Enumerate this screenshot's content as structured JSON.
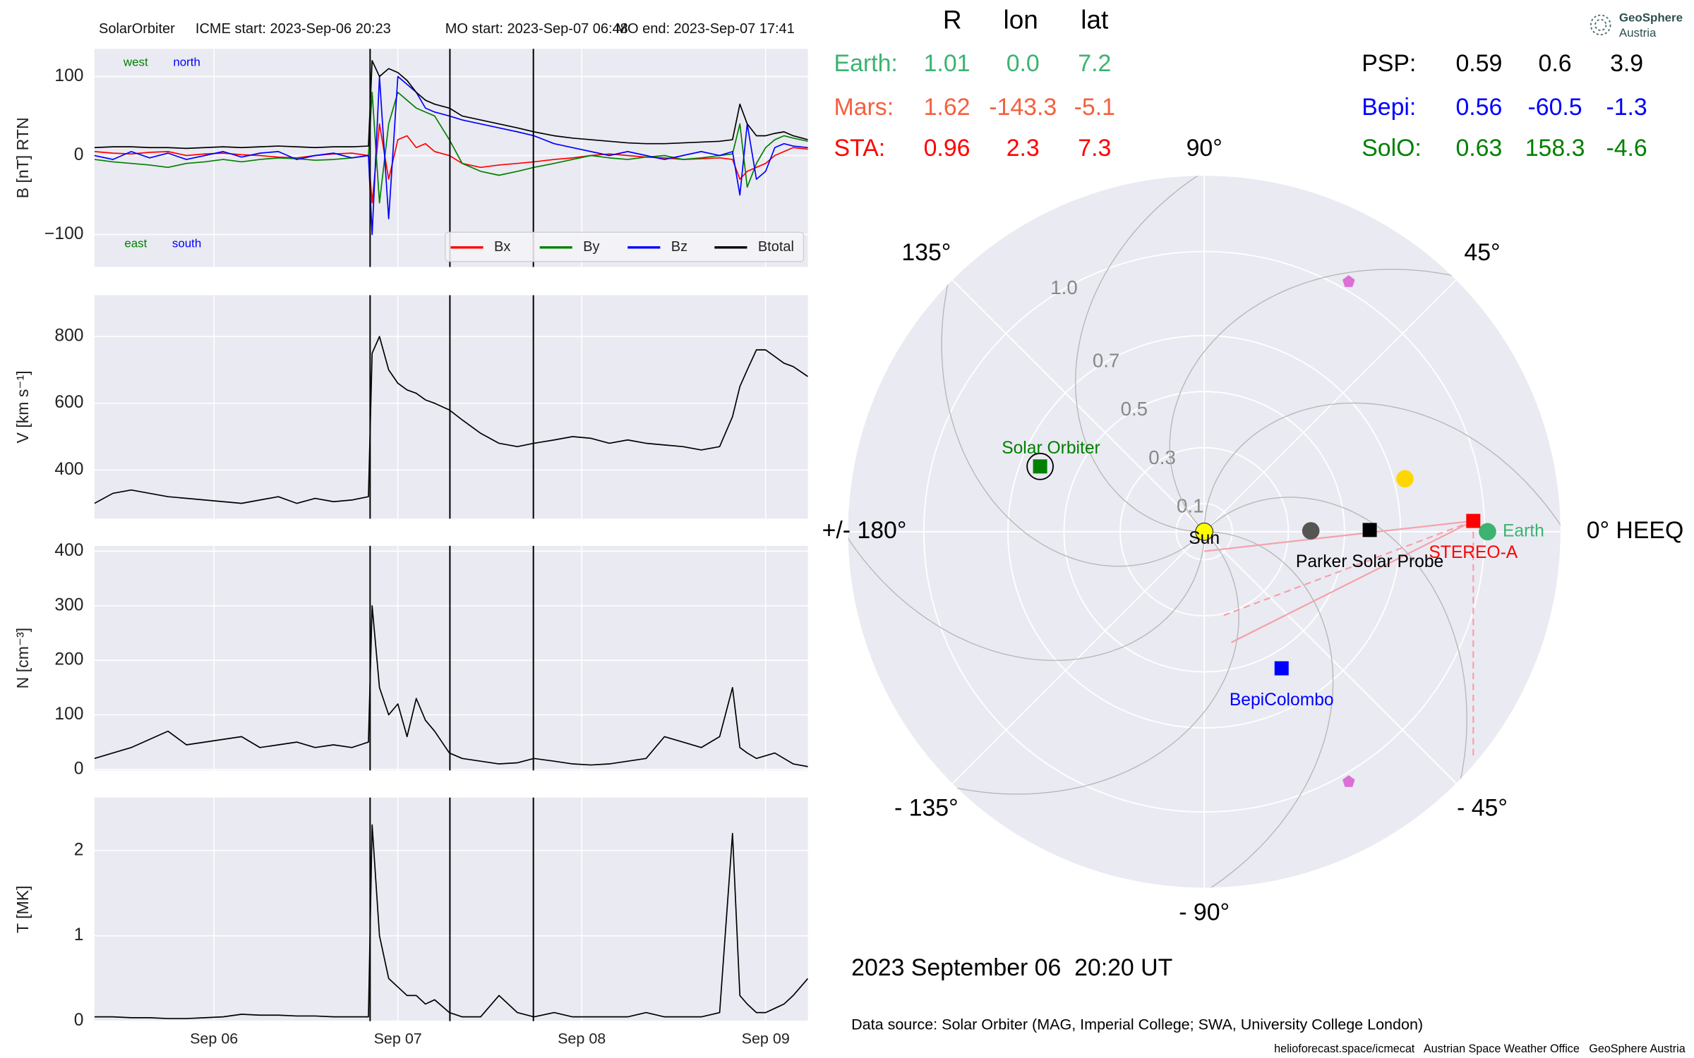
{
  "chart_data": [
    {
      "type": "line",
      "title": "SolarOrbiter",
      "annotations": [
        "ICME start: 2023-Sep-06 20:23",
        "MO start: 2023-Sep-07 06:48",
        "MO end: 2023-Sep-07 17:41"
      ],
      "ylabel": "B [nT] RTN",
      "x": [
        5.35,
        5.45,
        5.55,
        5.65,
        5.75,
        5.85,
        5.95,
        6.05,
        6.15,
        6.25,
        6.35,
        6.45,
        6.55,
        6.65,
        6.75,
        6.84,
        6.86,
        6.9,
        6.95,
        7.0,
        7.05,
        7.1,
        7.15,
        7.2,
        7.28,
        7.35,
        7.45,
        7.55,
        7.65,
        7.74,
        7.85,
        7.95,
        8.05,
        8.15,
        8.25,
        8.35,
        8.45,
        8.55,
        8.65,
        8.75,
        8.82,
        8.86,
        8.9,
        8.95,
        9.0,
        9.05,
        9.1,
        9.15,
        9.23
      ],
      "series": [
        {
          "name": "Bx",
          "color": "#ff0000",
          "values": [
            5,
            3,
            2,
            4,
            5,
            0,
            2,
            3,
            1,
            0,
            -2,
            -3,
            0,
            2,
            3,
            0,
            -60,
            40,
            -30,
            20,
            25,
            10,
            15,
            5,
            0,
            -10,
            -15,
            -12,
            -10,
            -8,
            -5,
            -3,
            0,
            2,
            0,
            -2,
            -3,
            -5,
            -4,
            -3,
            -5,
            -30,
            -20,
            -15,
            -10,
            0,
            5,
            10,
            8
          ]
        },
        {
          "name": "By",
          "color": "#008000",
          "values": [
            -5,
            -8,
            -10,
            -12,
            -15,
            -10,
            -8,
            -5,
            -8,
            -5,
            -3,
            -4,
            -6,
            -5,
            -3,
            0,
            80,
            -60,
            40,
            80,
            70,
            60,
            55,
            50,
            20,
            -10,
            -20,
            -25,
            -20,
            -15,
            -10,
            -5,
            0,
            -3,
            -5,
            -2,
            0,
            -5,
            -3,
            0,
            2,
            40,
            -40,
            -10,
            10,
            20,
            25,
            22,
            18
          ]
        },
        {
          "name": "Bz",
          "color": "#0000ff",
          "values": [
            0,
            -5,
            5,
            -3,
            3,
            -5,
            0,
            5,
            -2,
            3,
            5,
            -5,
            0,
            3,
            -3,
            0,
            -100,
            100,
            -80,
            100,
            90,
            80,
            60,
            55,
            50,
            45,
            40,
            35,
            30,
            25,
            15,
            10,
            5,
            0,
            5,
            0,
            -5,
            0,
            5,
            0,
            5,
            -50,
            40,
            -30,
            -20,
            10,
            15,
            12,
            10
          ]
        },
        {
          "name": "Btotal",
          "color": "#000000",
          "values": [
            10,
            11,
            11,
            10,
            10,
            9,
            10,
            11,
            10,
            11,
            12,
            11,
            10,
            11,
            11,
            12,
            120,
            100,
            110,
            105,
            95,
            80,
            70,
            65,
            60,
            50,
            45,
            40,
            35,
            30,
            25,
            22,
            20,
            18,
            16,
            15,
            15,
            16,
            17,
            18,
            20,
            65,
            40,
            25,
            25,
            28,
            30,
            25,
            20
          ]
        }
      ],
      "corner_labels": [
        {
          "text": "west",
          "color": "#008000"
        },
        {
          "text": "north",
          "color": "#0000ff"
        },
        {
          "text": "east",
          "color": "#008000"
        },
        {
          "text": "south",
          "color": "#0000ff"
        }
      ],
      "event_lines": [
        6.849,
        7.283,
        7.737
      ],
      "xlim": [
        5.35,
        9.23
      ],
      "xticks": [
        6,
        7,
        8,
        9
      ],
      "ylim": [
        -141,
        135
      ],
      "yticks": [
        {
          "value": -100,
          "label": "−100"
        },
        0,
        100
      ],
      "grid": true,
      "legend": "lower right"
    },
    {
      "type": "line",
      "ylabel": "V [km s⁻¹]",
      "x": [
        5.35,
        5.45,
        5.55,
        5.65,
        5.75,
        5.85,
        5.95,
        6.05,
        6.15,
        6.25,
        6.35,
        6.45,
        6.55,
        6.65,
        6.75,
        6.84,
        6.86,
        6.9,
        6.95,
        7.0,
        7.05,
        7.1,
        7.15,
        7.2,
        7.28,
        7.35,
        7.45,
        7.55,
        7.65,
        7.74,
        7.85,
        7.95,
        8.05,
        8.15,
        8.25,
        8.35,
        8.45,
        8.55,
        8.65,
        8.75,
        8.82,
        8.86,
        8.9,
        8.95,
        9.0,
        9.05,
        9.1,
        9.15,
        9.23
      ],
      "values": [
        300,
        330,
        340,
        330,
        320,
        315,
        310,
        305,
        300,
        310,
        320,
        300,
        315,
        305,
        310,
        320,
        750,
        800,
        700,
        660,
        640,
        630,
        610,
        600,
        580,
        550,
        510,
        480,
        470,
        480,
        490,
        500,
        495,
        480,
        490,
        480,
        475,
        470,
        460,
        470,
        560,
        650,
        700,
        760,
        760,
        740,
        720,
        710,
        680
      ],
      "color": "#000000",
      "event_lines": [
        6.849,
        7.283,
        7.737
      ],
      "xlim": [
        5.35,
        9.23
      ],
      "xticks": [
        6,
        7,
        8,
        9
      ],
      "ylim": [
        254,
        924
      ],
      "yticks": [
        400,
        600,
        800
      ],
      "grid": true
    },
    {
      "type": "line",
      "ylabel": "N [cm⁻³]",
      "x": [
        5.35,
        5.45,
        5.55,
        5.65,
        5.75,
        5.85,
        5.95,
        6.05,
        6.15,
        6.25,
        6.35,
        6.45,
        6.55,
        6.65,
        6.75,
        6.84,
        6.86,
        6.9,
        6.95,
        7.0,
        7.05,
        7.1,
        7.15,
        7.2,
        7.28,
        7.35,
        7.45,
        7.55,
        7.65,
        7.74,
        7.85,
        7.95,
        8.05,
        8.15,
        8.25,
        8.35,
        8.45,
        8.55,
        8.65,
        8.75,
        8.82,
        8.86,
        8.9,
        8.95,
        9.0,
        9.05,
        9.1,
        9.15,
        9.23
      ],
      "values": [
        20,
        30,
        40,
        55,
        70,
        45,
        50,
        55,
        60,
        40,
        45,
        50,
        40,
        45,
        40,
        50,
        300,
        150,
        100,
        120,
        60,
        130,
        90,
        70,
        30,
        20,
        15,
        10,
        12,
        20,
        15,
        10,
        8,
        10,
        15,
        20,
        60,
        50,
        40,
        60,
        150,
        40,
        30,
        20,
        25,
        30,
        20,
        10,
        5
      ],
      "color": "#000000",
      "event_lines": [
        6.849,
        7.283,
        7.737
      ],
      "xlim": [
        5.35,
        9.23
      ],
      "xticks": [
        6,
        7,
        8,
        9
      ],
      "ylim": [
        -2,
        410
      ],
      "yticks": [
        0,
        100,
        200,
        300,
        400
      ],
      "grid": true
    },
    {
      "type": "line",
      "ylabel": "T [MK]",
      "x": [
        5.35,
        5.45,
        5.55,
        5.65,
        5.75,
        5.85,
        5.95,
        6.05,
        6.15,
        6.25,
        6.35,
        6.45,
        6.55,
        6.65,
        6.75,
        6.84,
        6.86,
        6.9,
        6.95,
        7.0,
        7.05,
        7.1,
        7.15,
        7.2,
        7.28,
        7.35,
        7.45,
        7.55,
        7.65,
        7.74,
        7.85,
        7.95,
        8.05,
        8.15,
        8.25,
        8.35,
        8.45,
        8.55,
        8.65,
        8.75,
        8.82,
        8.86,
        8.9,
        8.95,
        9.0,
        9.05,
        9.1,
        9.15,
        9.23
      ],
      "values": [
        0.05,
        0.05,
        0.04,
        0.04,
        0.03,
        0.03,
        0.04,
        0.05,
        0.08,
        0.07,
        0.07,
        0.06,
        0.06,
        0.05,
        0.05,
        0.05,
        2.3,
        1.0,
        0.5,
        0.4,
        0.3,
        0.3,
        0.2,
        0.25,
        0.1,
        0.05,
        0.05,
        0.3,
        0.1,
        0.05,
        0.1,
        0.05,
        0.05,
        0.05,
        0.05,
        0.1,
        0.05,
        0.05,
        0.05,
        0.1,
        2.2,
        0.3,
        0.2,
        0.1,
        0.1,
        0.15,
        0.2,
        0.3,
        0.5
      ],
      "color": "#000000",
      "event_lines": [
        6.849,
        7.283,
        7.737
      ],
      "xlim": [
        5.35,
        9.23
      ],
      "xticks": [
        {
          "value": 6,
          "label": "Sep 06"
        },
        {
          "value": 7,
          "label": "Sep 07"
        },
        {
          "value": 8,
          "label": "Sep 08"
        },
        {
          "value": 9,
          "label": "Sep 09"
        }
      ],
      "ylim": [
        0,
        2.62
      ],
      "yticks": [
        0,
        1,
        2
      ],
      "grid": true
    },
    {
      "type": "polar",
      "rlim": [
        0,
        1.27
      ],
      "rticks": [
        0.1,
        0.3,
        0.5,
        0.7,
        {
          "value": 1,
          "label": "1.0"
        }
      ],
      "thetaticks": [
        {
          "value": 0,
          "label": "0° HEEQ"
        },
        {
          "value": 45,
          "label": "45°"
        },
        {
          "value": 90,
          "label": "90°"
        },
        {
          "value": 135,
          "label": "135°"
        },
        {
          "value": 180,
          "label": "+/- 180°"
        },
        {
          "value": -135,
          "label": "- 135°"
        },
        {
          "value": -90,
          "label": "- 90°"
        },
        {
          "value": -45,
          "label": "- 45°"
        }
      ],
      "points": [
        {
          "name": "Sun",
          "r": 0,
          "lon": 0,
          "color": "#ffff00",
          "marker": "circle",
          "label_side": "center"
        },
        {
          "name": "Earth",
          "r": 1.01,
          "lon": 0,
          "color": "#3cb371",
          "marker": "circle",
          "label_side": "right"
        },
        {
          "name": "STEREO-A",
          "r": 0.96,
          "lon": 2.3,
          "color": "#ff0000",
          "marker": "square",
          "label_side": "below"
        },
        {
          "name": "Parker Solar Probe",
          "r": 0.59,
          "lon": 0.6,
          "color": "#000000",
          "marker": "square",
          "label_side": "below"
        },
        {
          "name": "BepiColombo",
          "r": 0.56,
          "lon": -60.5,
          "color": "#0000ff",
          "marker": "square",
          "label_side": "below"
        },
        {
          "name": "Solar Orbiter",
          "r": 0.63,
          "lon": 158.3,
          "color": "#008000",
          "marker": "square",
          "label_side": "above",
          "highlight": true
        },
        {
          "r": 0.38,
          "lon": 0.5,
          "color": "#555555",
          "marker": "circle"
        },
        {
          "r": 0.74,
          "lon": 14.8,
          "color": "#ffd700",
          "marker": "circle"
        },
        {
          "r": 1.03,
          "lon": 60,
          "color": "#da70d6",
          "marker": "pentagon"
        },
        {
          "r": 1.03,
          "lon": -60,
          "color": "#da70d6",
          "marker": "pentagon"
        }
      ]
    }
  ],
  "positions": {
    "headers": [
      "R",
      "lon",
      "lat"
    ],
    "rows": [
      {
        "name": "Earth:",
        "color": "#3cb371",
        "values": [
          "1.01",
          "0.0",
          "7.2"
        ]
      },
      {
        "name": "Mars:",
        "color": "#f4603f",
        "values": [
          "1.62",
          "-143.3",
          "-5.1"
        ]
      },
      {
        "name": "STA:",
        "color": "#ff0000",
        "values": [
          "0.96",
          "2.3",
          "7.3"
        ]
      },
      {
        "name": "PSP:",
        "color": "#000000",
        "values": [
          "0.59",
          "0.6",
          "3.9"
        ]
      },
      {
        "name": "Bepi:",
        "color": "#0000ff",
        "values": [
          "0.56",
          "-60.5",
          "-1.3"
        ]
      },
      {
        "name": "SolO:",
        "color": "#008000",
        "values": [
          "0.63",
          "158.3",
          "-4.6"
        ]
      }
    ]
  },
  "timestamp": "2023 September 06  20:20 UT",
  "source": "Data source: Solar Orbiter (MAG, Imperial College; SWA, University College London)",
  "footer": "helioforecast.space/icmecat   Austrian Space Weather Office   GeoSphere Austria",
  "logo": [
    "GeoSphere",
    "Austria"
  ]
}
